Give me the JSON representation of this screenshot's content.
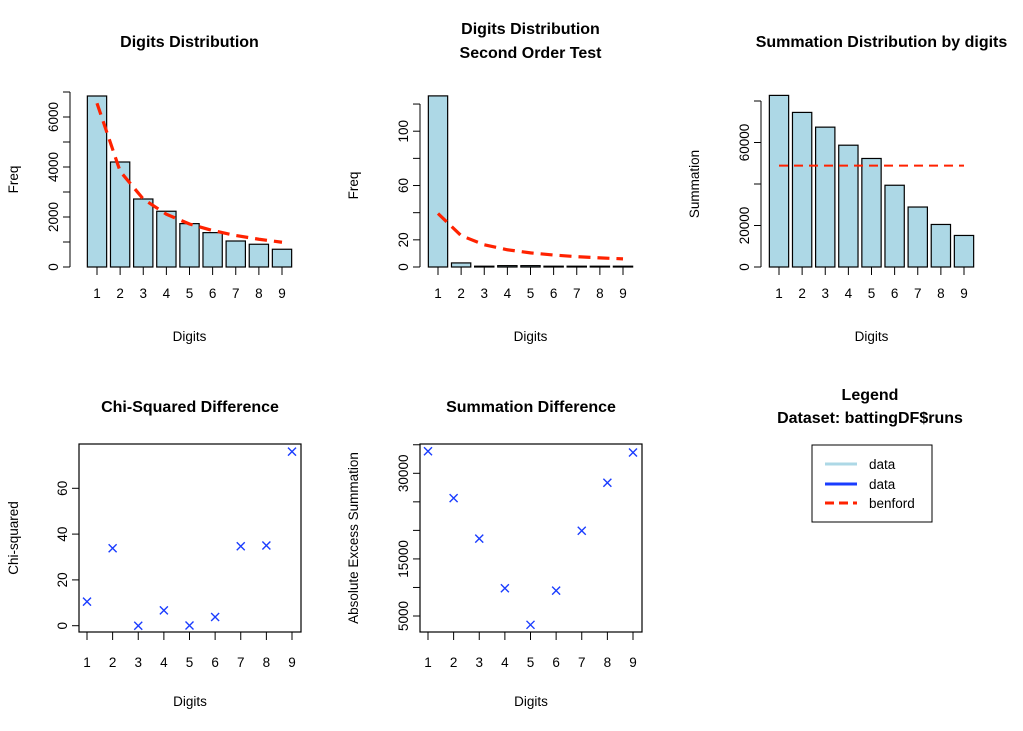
{
  "colors": {
    "bar_fill": "#add8e6",
    "bar_stroke": "#000000",
    "benford": "#ff2200",
    "points": "#1a3cff",
    "legend_data1": "#add8e6",
    "legend_data2": "#1a3cff"
  },
  "chart_data": [
    {
      "id": "p1",
      "type": "bar",
      "title": "Digits Distribution",
      "xlabel": "Digits",
      "ylabel": "Freq",
      "categories": [
        "1",
        "2",
        "3",
        "4",
        "5",
        "6",
        "7",
        "8",
        "9"
      ],
      "series": [
        {
          "name": "data",
          "values": [
            6840,
            4200,
            2720,
            2230,
            1735,
            1375,
            1040,
            910,
            710
          ]
        },
        {
          "name": "benford",
          "type": "line",
          "values": [
            6550,
            3830,
            2720,
            2110,
            1720,
            1460,
            1260,
            1110,
            990
          ]
        }
      ],
      "yticks": [
        0,
        1000,
        2000,
        3000,
        4000,
        5000,
        6000,
        7000
      ],
      "ytick_labels": [
        "0",
        "2000",
        "4000",
        "6000"
      ],
      "ytick_label_values": [
        0,
        2000,
        4000,
        6000
      ]
    },
    {
      "id": "p2",
      "type": "bar",
      "title": "Digits Distribution",
      "subtitle": "Second Order Test",
      "xlabel": "Digits",
      "ylabel": "Freq",
      "categories": [
        "1",
        "2",
        "3",
        "4",
        "5",
        "6",
        "7",
        "8",
        "9"
      ],
      "series": [
        {
          "name": "data",
          "values": [
            126,
            3,
            0,
            1,
            1,
            0,
            0,
            0,
            0
          ]
        },
        {
          "name": "benford",
          "type": "line",
          "values": [
            39.4,
            23.1,
            16.4,
            12.7,
            10.4,
            8.8,
            7.6,
            6.7,
            6.0
          ]
        }
      ],
      "yticks": [
        0,
        20,
        40,
        60,
        80,
        100,
        120
      ],
      "ytick_labels": [
        "0",
        "20",
        "60",
        "100"
      ],
      "ytick_label_values": [
        0,
        20,
        60,
        100
      ]
    },
    {
      "id": "p3",
      "type": "bar",
      "title": "Summation Distribution by digits",
      "xlabel": "Digits",
      "ylabel": "Summation",
      "categories": [
        "1",
        "2",
        "3",
        "4",
        "5",
        "6",
        "7",
        "8",
        "9"
      ],
      "series": [
        {
          "name": "data",
          "values": [
            82700,
            74500,
            67400,
            58700,
            52300,
            39400,
            28900,
            20500,
            15200
          ]
        },
        {
          "name": "benford",
          "type": "line",
          "values": [
            48844,
            48844,
            48844,
            48844,
            48844,
            48844,
            48844,
            48844,
            48844
          ]
        }
      ],
      "yticks": [
        0,
        20000,
        40000,
        60000,
        80000
      ],
      "ytick_labels": [
        "0",
        "20000",
        "60000"
      ],
      "ytick_label_values": [
        0,
        20000,
        60000
      ]
    },
    {
      "id": "p4",
      "type": "scatter",
      "title": "Chi-Squared Difference",
      "xlabel": "Digits",
      "ylabel": "Chi-squared",
      "categories": [
        "1",
        "2",
        "3",
        "4",
        "5",
        "6",
        "7",
        "8",
        "9"
      ],
      "series": [
        {
          "name": "data",
          "values": [
            10.5,
            33.8,
            0,
            6.7,
            0.1,
            3.8,
            34.7,
            35.0,
            76.0
          ]
        }
      ],
      "yticks": [
        0,
        20,
        40,
        60
      ],
      "ytick_labels": [
        "0",
        "20",
        "40",
        "60"
      ],
      "ytick_label_values": [
        0,
        20,
        40,
        60
      ]
    },
    {
      "id": "p5",
      "type": "scatter",
      "title": "Summation Difference",
      "xlabel": "Digits",
      "ylabel": "Absolute Excess Summation",
      "categories": [
        "1",
        "2",
        "3",
        "4",
        "5",
        "6",
        "7",
        "8",
        "9"
      ],
      "series": [
        {
          "name": "data",
          "values": [
            33856,
            25656,
            18556,
            9856,
            3456,
            9444,
            19944,
            28344,
            33644
          ]
        }
      ],
      "yticks": [
        5000,
        10000,
        15000,
        20000,
        25000,
        30000,
        35000
      ],
      "ytick_labels": [
        "5000",
        "15000",
        "30000"
      ],
      "ytick_label_values": [
        5000,
        15000,
        30000
      ]
    }
  ],
  "legend": {
    "title": "Legend",
    "subtitle": "Dataset: battingDF$runs",
    "entries": [
      {
        "label": "data",
        "style": "solid",
        "color": "#add8e6"
      },
      {
        "label": "data",
        "style": "solid",
        "color": "#1a3cff"
      },
      {
        "label": "benford",
        "style": "dashed",
        "color": "#ff2200"
      }
    ]
  },
  "point_marker": "x"
}
